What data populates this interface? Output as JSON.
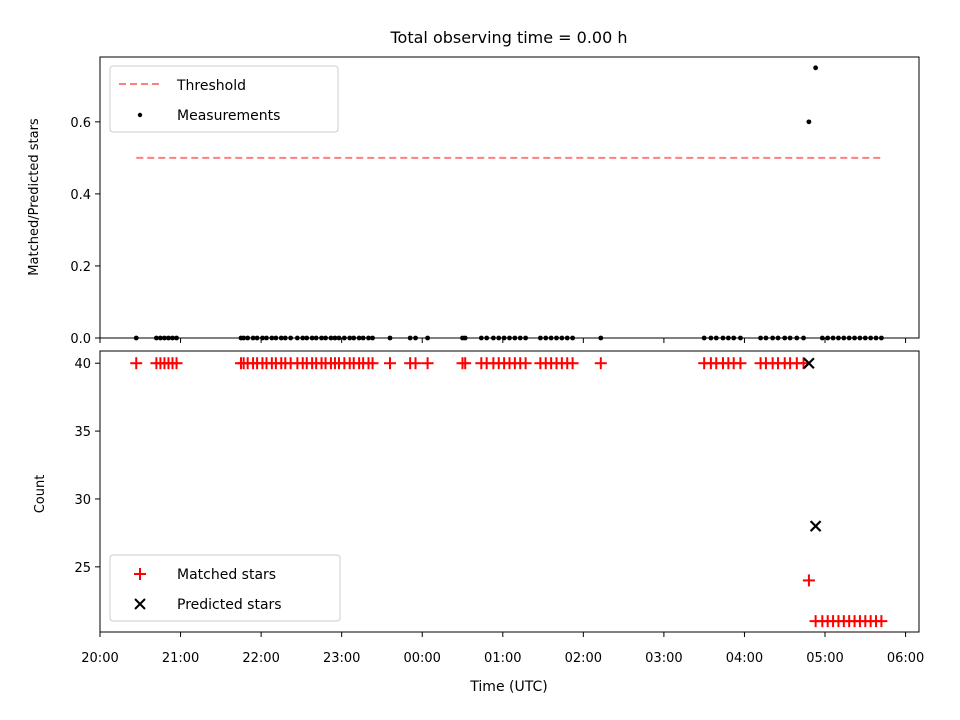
{
  "chart_data": [
    {
      "type": "scatter",
      "title": "Total observing time = 0.00 h",
      "xlabel": "",
      "ylabel": "Matched/Predicted stars",
      "xlim": [
        "20:00",
        "06:10"
      ],
      "ylim": [
        0.0,
        0.78
      ],
      "yticks": [
        0.0,
        0.2,
        0.4,
        0.6
      ],
      "ytick_labels": [
        "0.0",
        "0.2",
        "0.4",
        "0.6"
      ],
      "legend_position": "upper-left",
      "series": [
        {
          "name": "Threshold",
          "kind": "line",
          "style": "dashed",
          "color": "#ff7f7f",
          "x": [
            "20:27",
            "05:42"
          ],
          "y": [
            0.5,
            0.5
          ]
        },
        {
          "name": "Measurements",
          "kind": "scatter",
          "color": "#000000",
          "x": [
            "20:27",
            "20:42",
            "20:45",
            "20:48",
            "20:51",
            "20:54",
            "20:57",
            "21:45",
            "21:47",
            "21:50",
            "21:54",
            "21:57",
            "22:01",
            "22:04",
            "22:08",
            "22:11",
            "22:15",
            "22:18",
            "22:22",
            "22:27",
            "22:31",
            "22:34",
            "22:38",
            "22:41",
            "22:45",
            "22:48",
            "22:52",
            "22:55",
            "22:58",
            "23:02",
            "23:06",
            "23:09",
            "23:13",
            "23:16",
            "23:20",
            "23:23",
            "23:36",
            "23:51",
            "23:55",
            "00:04",
            "00:30",
            "00:32",
            "00:44",
            "00:48",
            "00:53",
            "00:57",
            "01:01",
            "01:05",
            "01:09",
            "01:13",
            "01:17",
            "01:28",
            "01:32",
            "01:36",
            "01:40",
            "01:44",
            "01:48",
            "01:52",
            "02:13",
            "03:30",
            "03:35",
            "03:39",
            "03:44",
            "03:48",
            "03:52",
            "03:57",
            "04:12",
            "04:16",
            "04:21",
            "04:25",
            "04:30",
            "04:34",
            "04:39",
            "04:44",
            "04:48",
            "04:53",
            "04:58",
            "05:02",
            "05:06",
            "05:10",
            "05:14",
            "05:18",
            "05:22",
            "05:26",
            "05:30",
            "05:34",
            "05:38",
            "05:42"
          ],
          "y": [
            0,
            0,
            0,
            0,
            0,
            0,
            0,
            0,
            0,
            0,
            0,
            0,
            0,
            0,
            0,
            0,
            0,
            0,
            0,
            0,
            0,
            0,
            0,
            0,
            0,
            0,
            0,
            0,
            0,
            0,
            0,
            0,
            0,
            0,
            0,
            0,
            0,
            0,
            0,
            0,
            0,
            0,
            0,
            0,
            0,
            0,
            0,
            0,
            0,
            0,
            0,
            0,
            0,
            0,
            0,
            0,
            0,
            0,
            0,
            0,
            0,
            0,
            0,
            0,
            0,
            0,
            0,
            0,
            0,
            0,
            0,
            0,
            0,
            0,
            0.6,
            0.75,
            0,
            0,
            0,
            0,
            0,
            0,
            0,
            0,
            0,
            0,
            0,
            0
          ]
        }
      ]
    },
    {
      "type": "scatter",
      "title": "",
      "xlabel": "Time (UTC)",
      "ylabel": "Count",
      "xlim": [
        "20:00",
        "06:10"
      ],
      "ylim": [
        20.2,
        40.9
      ],
      "xticks": [
        "20:00",
        "21:00",
        "22:00",
        "23:00",
        "00:00",
        "01:00",
        "02:00",
        "03:00",
        "04:00",
        "05:00",
        "06:00"
      ],
      "yticks": [
        25,
        30,
        35,
        40
      ],
      "legend_position": "lower-left",
      "series": [
        {
          "name": "Matched stars",
          "marker": "+",
          "color": "#ff0000",
          "x": [
            "20:27",
            "20:42",
            "20:45",
            "20:48",
            "20:51",
            "20:54",
            "20:57",
            "21:45",
            "21:47",
            "21:50",
            "21:54",
            "21:57",
            "22:01",
            "22:04",
            "22:08",
            "22:11",
            "22:15",
            "22:18",
            "22:22",
            "22:27",
            "22:31",
            "22:34",
            "22:38",
            "22:41",
            "22:45",
            "22:48",
            "22:52",
            "22:55",
            "22:58",
            "23:02",
            "23:06",
            "23:09",
            "23:13",
            "23:16",
            "23:20",
            "23:23",
            "23:36",
            "23:51",
            "23:55",
            "00:04",
            "00:30",
            "00:32",
            "00:44",
            "00:48",
            "00:53",
            "00:57",
            "01:01",
            "01:05",
            "01:09",
            "01:13",
            "01:17",
            "01:28",
            "01:32",
            "01:36",
            "01:40",
            "01:44",
            "01:48",
            "01:52",
            "02:13",
            "03:30",
            "03:35",
            "03:39",
            "03:44",
            "03:48",
            "03:52",
            "03:57",
            "04:12",
            "04:16",
            "04:21",
            "04:25",
            "04:30",
            "04:34",
            "04:39",
            "04:44",
            "04:48",
            "04:53",
            "04:58",
            "05:02",
            "05:06",
            "05:10",
            "05:14",
            "05:18",
            "05:22",
            "05:26",
            "05:30",
            "05:34",
            "05:38",
            "05:42"
          ],
          "y": [
            40,
            40,
            40,
            40,
            40,
            40,
            40,
            40,
            40,
            40,
            40,
            40,
            40,
            40,
            40,
            40,
            40,
            40,
            40,
            40,
            40,
            40,
            40,
            40,
            40,
            40,
            40,
            40,
            40,
            40,
            40,
            40,
            40,
            40,
            40,
            40,
            40,
            40,
            40,
            40,
            40,
            40,
            40,
            40,
            40,
            40,
            40,
            40,
            40,
            40,
            40,
            40,
            40,
            40,
            40,
            40,
            40,
            40,
            40,
            40,
            40,
            40,
            40,
            40,
            40,
            40,
            40,
            40,
            40,
            40,
            40,
            40,
            40,
            40,
            24,
            21,
            21,
            21,
            21,
            21,
            21,
            21,
            21,
            21,
            21,
            21,
            21,
            21
          ]
        },
        {
          "name": "Predicted stars",
          "marker": "x",
          "color": "#000000",
          "x": [
            "04:48",
            "04:53"
          ],
          "y": [
            40,
            28
          ]
        }
      ]
    }
  ]
}
